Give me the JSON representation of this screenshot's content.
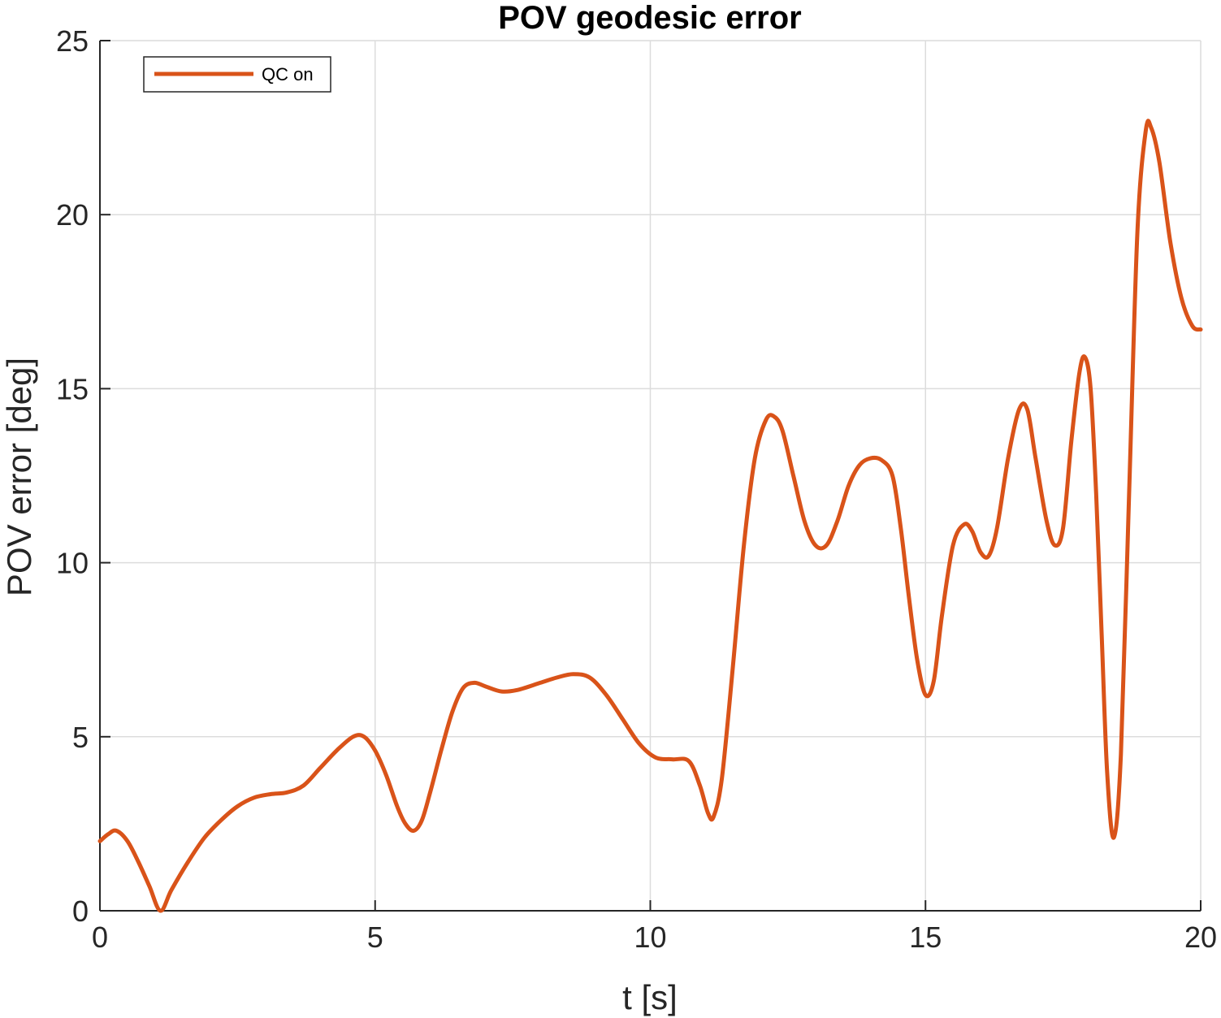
{
  "chart_data": {
    "type": "line",
    "title": "POV geodesic error",
    "xlabel": "t [s]",
    "ylabel": "POV error [deg]",
    "xlim": [
      0,
      20
    ],
    "ylim": [
      0,
      25
    ],
    "xticks": [
      0,
      5,
      10,
      15,
      20
    ],
    "yticks": [
      0,
      5,
      10,
      15,
      20,
      25
    ],
    "xtick_labels": [
      "0",
      "5",
      "10",
      "15",
      "20"
    ],
    "ytick_labels": [
      "0",
      "5",
      "10",
      "15",
      "20",
      "25"
    ],
    "grid": true,
    "legend_position": "top-left",
    "series": [
      {
        "name": "QC on",
        "color": "#D95319",
        "points": [
          [
            0.0,
            2.0
          ],
          [
            0.15,
            2.2
          ],
          [
            0.3,
            2.3
          ],
          [
            0.5,
            2.0
          ],
          [
            0.7,
            1.4
          ],
          [
            0.9,
            0.7
          ],
          [
            1.1,
            0.0
          ],
          [
            1.3,
            0.6
          ],
          [
            1.6,
            1.4
          ],
          [
            1.9,
            2.1
          ],
          [
            2.2,
            2.6
          ],
          [
            2.5,
            3.0
          ],
          [
            2.8,
            3.25
          ],
          [
            3.1,
            3.35
          ],
          [
            3.4,
            3.4
          ],
          [
            3.7,
            3.6
          ],
          [
            4.0,
            4.1
          ],
          [
            4.3,
            4.6
          ],
          [
            4.6,
            5.0
          ],
          [
            4.8,
            5.0
          ],
          [
            5.0,
            4.6
          ],
          [
            5.2,
            3.9
          ],
          [
            5.4,
            3.0
          ],
          [
            5.55,
            2.5
          ],
          [
            5.7,
            2.3
          ],
          [
            5.85,
            2.6
          ],
          [
            6.0,
            3.4
          ],
          [
            6.2,
            4.6
          ],
          [
            6.4,
            5.7
          ],
          [
            6.6,
            6.4
          ],
          [
            6.8,
            6.55
          ],
          [
            7.0,
            6.45
          ],
          [
            7.3,
            6.3
          ],
          [
            7.6,
            6.35
          ],
          [
            8.0,
            6.55
          ],
          [
            8.3,
            6.7
          ],
          [
            8.6,
            6.8
          ],
          [
            8.9,
            6.7
          ],
          [
            9.2,
            6.2
          ],
          [
            9.5,
            5.5
          ],
          [
            9.8,
            4.8
          ],
          [
            10.1,
            4.4
          ],
          [
            10.4,
            4.35
          ],
          [
            10.7,
            4.3
          ],
          [
            10.9,
            3.6
          ],
          [
            11.05,
            2.8
          ],
          [
            11.15,
            2.7
          ],
          [
            11.3,
            3.8
          ],
          [
            11.5,
            7.0
          ],
          [
            11.7,
            10.5
          ],
          [
            11.9,
            13.0
          ],
          [
            12.1,
            14.1
          ],
          [
            12.25,
            14.2
          ],
          [
            12.4,
            13.8
          ],
          [
            12.6,
            12.5
          ],
          [
            12.8,
            11.2
          ],
          [
            13.0,
            10.5
          ],
          [
            13.2,
            10.5
          ],
          [
            13.4,
            11.2
          ],
          [
            13.6,
            12.2
          ],
          [
            13.8,
            12.8
          ],
          [
            14.0,
            13.0
          ],
          [
            14.2,
            12.95
          ],
          [
            14.4,
            12.5
          ],
          [
            14.55,
            11.0
          ],
          [
            14.7,
            9.0
          ],
          [
            14.85,
            7.2
          ],
          [
            15.0,
            6.2
          ],
          [
            15.15,
            6.6
          ],
          [
            15.3,
            8.5
          ],
          [
            15.5,
            10.5
          ],
          [
            15.7,
            11.1
          ],
          [
            15.85,
            10.9
          ],
          [
            16.0,
            10.3
          ],
          [
            16.15,
            10.2
          ],
          [
            16.3,
            11.0
          ],
          [
            16.5,
            13.0
          ],
          [
            16.7,
            14.4
          ],
          [
            16.85,
            14.4
          ],
          [
            17.0,
            13.0
          ],
          [
            17.2,
            11.2
          ],
          [
            17.35,
            10.5
          ],
          [
            17.5,
            11.0
          ],
          [
            17.65,
            13.5
          ],
          [
            17.8,
            15.5
          ],
          [
            17.9,
            15.9
          ],
          [
            18.0,
            15.0
          ],
          [
            18.1,
            12.0
          ],
          [
            18.2,
            8.0
          ],
          [
            18.3,
            4.0
          ],
          [
            18.42,
            2.1
          ],
          [
            18.55,
            4.5
          ],
          [
            18.7,
            12.0
          ],
          [
            18.85,
            19.5
          ],
          [
            19.0,
            22.4
          ],
          [
            19.1,
            22.5
          ],
          [
            19.25,
            21.5
          ],
          [
            19.45,
            19.2
          ],
          [
            19.65,
            17.6
          ],
          [
            19.85,
            16.8
          ],
          [
            20.0,
            16.7
          ]
        ]
      }
    ]
  }
}
